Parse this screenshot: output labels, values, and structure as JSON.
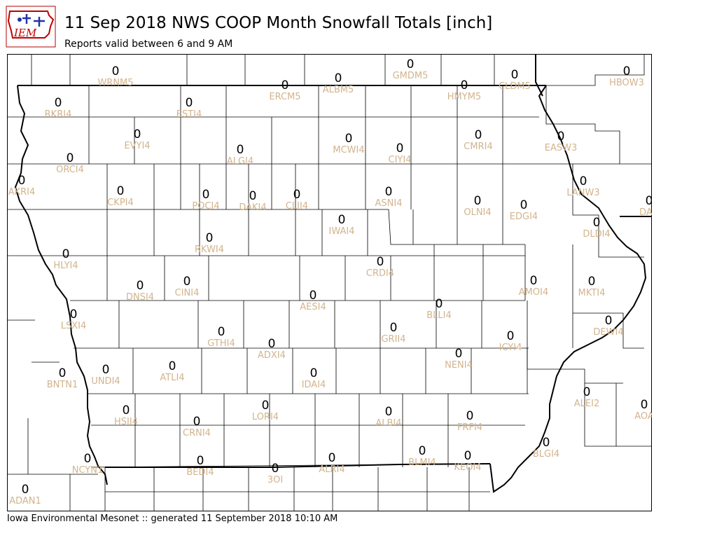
{
  "header": {
    "logo_text": "IEM",
    "title": "11 Sep 2018 NWS COOP Month Snowfall Totals [inch]",
    "subtitle": "Reports valid between 6 and 9 AM"
  },
  "footer": {
    "text": "Iowa Environmental Mesonet :: generated 11 September 2018 10:10 AM"
  },
  "colors": {
    "value_text": "#000000",
    "station_text": "#d2b48c",
    "county_lines": "#000000",
    "background": "#ffffff"
  },
  "stations": [
    {
      "id": "WRNM5",
      "value": "0"
    },
    {
      "id": "ERCM5",
      "value": "0"
    },
    {
      "id": "ALBM5",
      "value": "0"
    },
    {
      "id": "GMDM5",
      "value": "0"
    },
    {
      "id": "HMYM5",
      "value": "0"
    },
    {
      "id": "CLDM5",
      "value": "0"
    },
    {
      "id": "HBOW3",
      "value": "0"
    },
    {
      "id": "RKRI4",
      "value": "0"
    },
    {
      "id": "ESTI4",
      "value": "0"
    },
    {
      "id": "EVYI4",
      "value": "0"
    },
    {
      "id": "ALGI4",
      "value": "0"
    },
    {
      "id": "MCWI4",
      "value": "0"
    },
    {
      "id": "CIYI4",
      "value": "0"
    },
    {
      "id": "CMRI4",
      "value": "0"
    },
    {
      "id": "EASW3",
      "value": "0"
    },
    {
      "id": "ORCI4",
      "value": "0"
    },
    {
      "id": "AKRI4",
      "value": "0"
    },
    {
      "id": "CKPI4",
      "value": "0"
    },
    {
      "id": "POCI4",
      "value": "0"
    },
    {
      "id": "DAKI4",
      "value": "0"
    },
    {
      "id": "CLII4",
      "value": "0"
    },
    {
      "id": "ASNI4",
      "value": "0"
    },
    {
      "id": "OLNI4",
      "value": "0"
    },
    {
      "id": "EDGI4",
      "value": "0"
    },
    {
      "id": "LANW3",
      "value": "0"
    },
    {
      "id": "DAR",
      "value": "0"
    },
    {
      "id": "IWAI4",
      "value": "0"
    },
    {
      "id": "DLDI4",
      "value": "0"
    },
    {
      "id": "RKWI4",
      "value": "0"
    },
    {
      "id": "HLYI4",
      "value": "0"
    },
    {
      "id": "CRDI4",
      "value": "0"
    },
    {
      "id": "DNSI4",
      "value": "0"
    },
    {
      "id": "CINI4",
      "value": "0"
    },
    {
      "id": "AESI4",
      "value": "0"
    },
    {
      "id": "BLLI4",
      "value": "0"
    },
    {
      "id": "AMOI4",
      "value": "0"
    },
    {
      "id": "MKTI4",
      "value": "0"
    },
    {
      "id": "LSXI4",
      "value": "0"
    },
    {
      "id": "GTHI4",
      "value": "0"
    },
    {
      "id": "ADXI4",
      "value": "0"
    },
    {
      "id": "GRII4",
      "value": "0"
    },
    {
      "id": "ICYI4",
      "value": "0"
    },
    {
      "id": "DEWI4",
      "value": "0"
    },
    {
      "id": "BNTN1",
      "value": "0"
    },
    {
      "id": "UNDI4",
      "value": "0"
    },
    {
      "id": "ATLI4",
      "value": "0"
    },
    {
      "id": "IDAI4",
      "value": "0"
    },
    {
      "id": "NENI4",
      "value": "0"
    },
    {
      "id": "ALEI2",
      "value": "0"
    },
    {
      "id": "AOA",
      "value": "0"
    },
    {
      "id": "HSII4",
      "value": "0"
    },
    {
      "id": "CRNI4",
      "value": "0"
    },
    {
      "id": "LORI4",
      "value": "0"
    },
    {
      "id": "ALBI4",
      "value": "0"
    },
    {
      "id": "FRFI4",
      "value": "0"
    },
    {
      "id": "NCYN1",
      "value": "0"
    },
    {
      "id": "BEDI4",
      "value": "0"
    },
    {
      "id": "3OI",
      "value": "0"
    },
    {
      "id": "ALRI4",
      "value": "0"
    },
    {
      "id": "BLMI4",
      "value": "0"
    },
    {
      "id": "KEOI4",
      "value": "0"
    },
    {
      "id": "BLGI4",
      "value": "0"
    },
    {
      "id": "ADAN1",
      "value": "0"
    }
  ]
}
